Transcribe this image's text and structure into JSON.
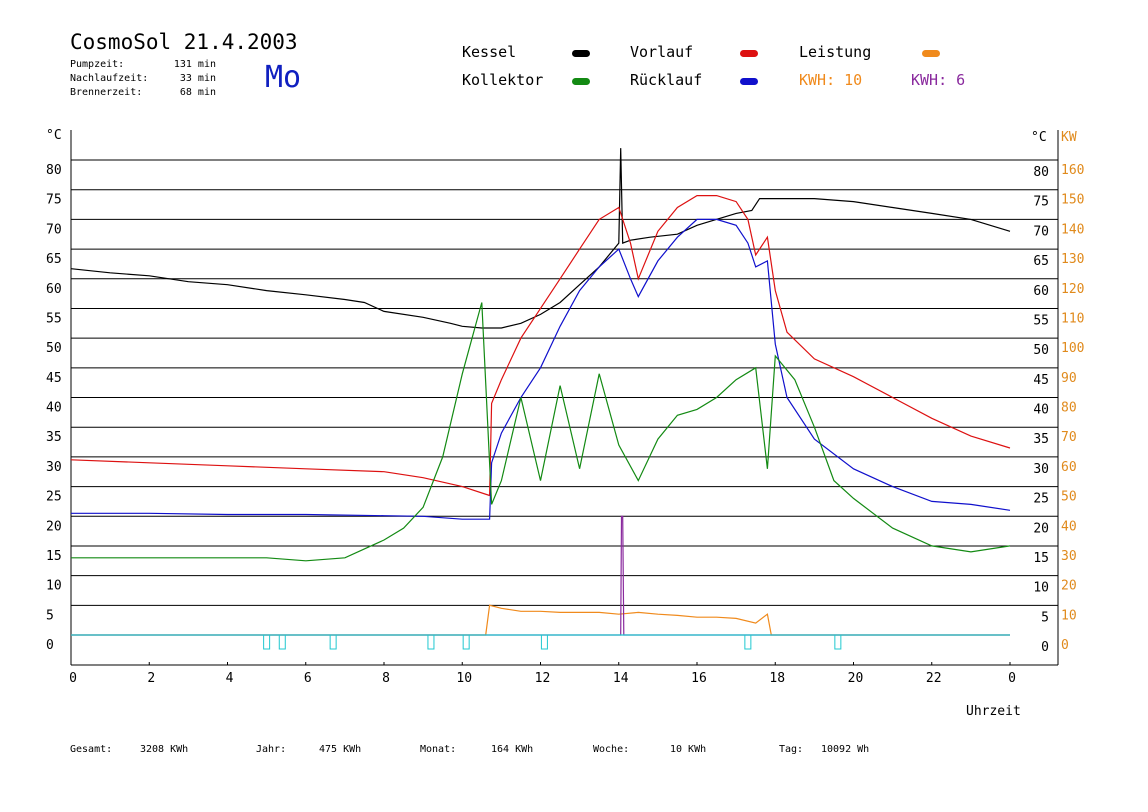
{
  "header": {
    "title": "CosmoSol 21.4.2003",
    "stats": [
      {
        "label": "Pumpzeit:",
        "value": "131 min"
      },
      {
        "label": "Nachlaufzeit:",
        "value": "33 min"
      },
      {
        "label": "Brennerzeit:",
        "value": "68 min"
      }
    ],
    "day": "Mo"
  },
  "legend": {
    "kessel": {
      "label": "Kessel",
      "color": "#000000"
    },
    "vorlauf": {
      "label": "Vorlauf",
      "color": "#dd1111"
    },
    "leistung": {
      "label": "Leistung",
      "color": "#f08a1c"
    },
    "kollektor": {
      "label": "Kollektor",
      "color": "#138a13"
    },
    "ruecklauf": {
      "label": "Rücklauf",
      "color": "#1010cc"
    },
    "kwh1": {
      "label": "KWH: 10",
      "color": "#f08a1c"
    },
    "kwh2": {
      "label": "KWH: 6",
      "color": "#8a2a9e"
    }
  },
  "footer": {
    "gesamt_label": "Gesamt:",
    "gesamt_value": "3208 KWh",
    "jahr_label": "Jahr:",
    "jahr_value": "475 KWh",
    "monat_label": "Monat:",
    "monat_value": "164 KWh",
    "woche_label": "Woche:",
    "woche_value": "10 KWh",
    "tag_label": "Tag:",
    "tag_value": "10092 Wh"
  },
  "chart_data": {
    "type": "line",
    "xlabel": "Uhrzeit",
    "ylabel_left": "°C",
    "ylabel_right_temp": "°C",
    "ylabel_right_power": "KW",
    "xlim": [
      0,
      24
    ],
    "ylim": [
      0,
      85
    ],
    "x_ticks": [
      "0",
      "2",
      "4",
      "6",
      "8",
      "10",
      "12",
      "14",
      "16",
      "18",
      "20",
      "22",
      "0"
    ],
    "y_ticks": [
      0,
      5,
      10,
      15,
      20,
      25,
      30,
      35,
      40,
      45,
      50,
      55,
      60,
      65,
      70,
      75,
      80
    ],
    "power_ticks": [
      0,
      10,
      20,
      30,
      40,
      50,
      60,
      70,
      80,
      90,
      100,
      110,
      120,
      130,
      140,
      150,
      160
    ],
    "grid": true,
    "series": [
      {
        "name": "Kessel",
        "color": "#000000",
        "x": [
          0,
          1,
          2,
          3,
          4,
          5,
          6,
          7,
          7.5,
          8,
          9,
          9.7,
          10,
          10.5,
          11,
          11.5,
          12,
          12.5,
          13,
          13.5,
          14,
          14.05,
          14.1,
          14.3,
          14.8,
          15.5,
          16,
          17,
          17.4,
          17.6,
          18,
          19,
          20,
          21,
          22,
          23,
          24
        ],
        "y": [
          61.7,
          61,
          60.5,
          59.5,
          59,
          58,
          57.3,
          56.5,
          56,
          54.5,
          53.5,
          52.5,
          52,
          51.7,
          51.7,
          52.5,
          54,
          56,
          59,
          62,
          66,
          82,
          66,
          66.5,
          67,
          67.5,
          69,
          71,
          71.5,
          73.5,
          73.5,
          73.5,
          73,
          72,
          71,
          70,
          68
        ]
      },
      {
        "name": "Vorlauf",
        "color": "#dd1111",
        "x": [
          0,
          2,
          4,
          6,
          8,
          9,
          10,
          10.7,
          10.75,
          11,
          11.5,
          12,
          12.5,
          13,
          13.5,
          14,
          14.3,
          14.5,
          15,
          15.5,
          16,
          16.5,
          17,
          17.3,
          17.5,
          17.8,
          18,
          18.3,
          19,
          20,
          21,
          22,
          23,
          24
        ],
        "y": [
          29.5,
          29,
          28.5,
          28,
          27.5,
          26.5,
          25,
          23.5,
          39,
          43,
          50,
          55,
          60,
          65,
          70,
          72,
          66,
          60,
          68,
          72,
          74,
          74,
          73,
          70,
          64,
          67,
          58,
          51,
          46.5,
          43.5,
          40,
          36.5,
          33.5,
          31.5
        ]
      },
      {
        "name": "Rücklauf",
        "color": "#1010cc",
        "x": [
          0,
          2,
          4,
          6,
          8,
          9,
          10,
          10.7,
          10.75,
          11,
          11.5,
          12,
          12.5,
          13,
          13.5,
          14,
          14.3,
          14.5,
          15,
          15.5,
          16,
          16.5,
          17,
          17.3,
          17.5,
          17.8,
          18,
          18.3,
          19,
          20,
          21,
          22,
          23,
          24
        ],
        "y": [
          20.5,
          20.5,
          20.3,
          20.3,
          20.1,
          20,
          19.5,
          19.5,
          29,
          34,
          40,
          45,
          52,
          58,
          62,
          65,
          60,
          57,
          63,
          67,
          70,
          70,
          69,
          66,
          62,
          63,
          49,
          40,
          33,
          28,
          25,
          22.5,
          22,
          21
        ]
      },
      {
        "name": "Kollektor",
        "color": "#138a13",
        "x": [
          0,
          1,
          2,
          3,
          4,
          5,
          6,
          7,
          8,
          8.5,
          9,
          9.5,
          10,
          10.5,
          10.75,
          11,
          11.5,
          12,
          12.5,
          13,
          13.5,
          14,
          14.5,
          15,
          15.5,
          16,
          16.5,
          17,
          17.5,
          17.8,
          18,
          18.5,
          19,
          19.5,
          20,
          21,
          22,
          23,
          24
        ],
        "y": [
          13,
          13,
          13,
          13,
          13,
          13,
          12.5,
          13,
          16,
          18,
          21.5,
          30,
          44,
          56,
          22,
          26,
          40,
          26,
          42,
          28,
          44,
          32,
          26,
          33,
          37,
          38,
          40,
          43,
          45,
          28,
          47,
          43,
          35,
          26,
          23,
          18,
          15,
          14,
          15
        ]
      },
      {
        "name": "Leistung",
        "color": "#f08a1c",
        "x": [
          0,
          10.6,
          10.7,
          11,
          11.5,
          12,
          12.5,
          13,
          13.5,
          14,
          14.5,
          15,
          15.5,
          16,
          16.5,
          17,
          17.5,
          17.8,
          17.9,
          24
        ],
        "y": [
          0,
          0,
          5,
          4.5,
          4,
          4,
          3.8,
          3.8,
          3.8,
          3.5,
          3.8,
          3.5,
          3.3,
          3,
          3,
          2.8,
          2,
          3.5,
          0,
          0
        ]
      },
      {
        "name": "KWH 6",
        "color": "#8a2a9e",
        "x": [
          0,
          14.05,
          14.07,
          14.1,
          14.13,
          24
        ],
        "y": [
          0,
          0,
          20,
          20,
          0,
          0
        ]
      },
      {
        "name": "Pumpe",
        "color": "#20c8d0",
        "x": [
          0,
          24
        ],
        "y": [
          0,
          0
        ]
      }
    ],
    "pump_markers": [
      5,
      5.4,
      6.7,
      9.2,
      10.1,
      12.1,
      17.3,
      19.6
    ]
  }
}
